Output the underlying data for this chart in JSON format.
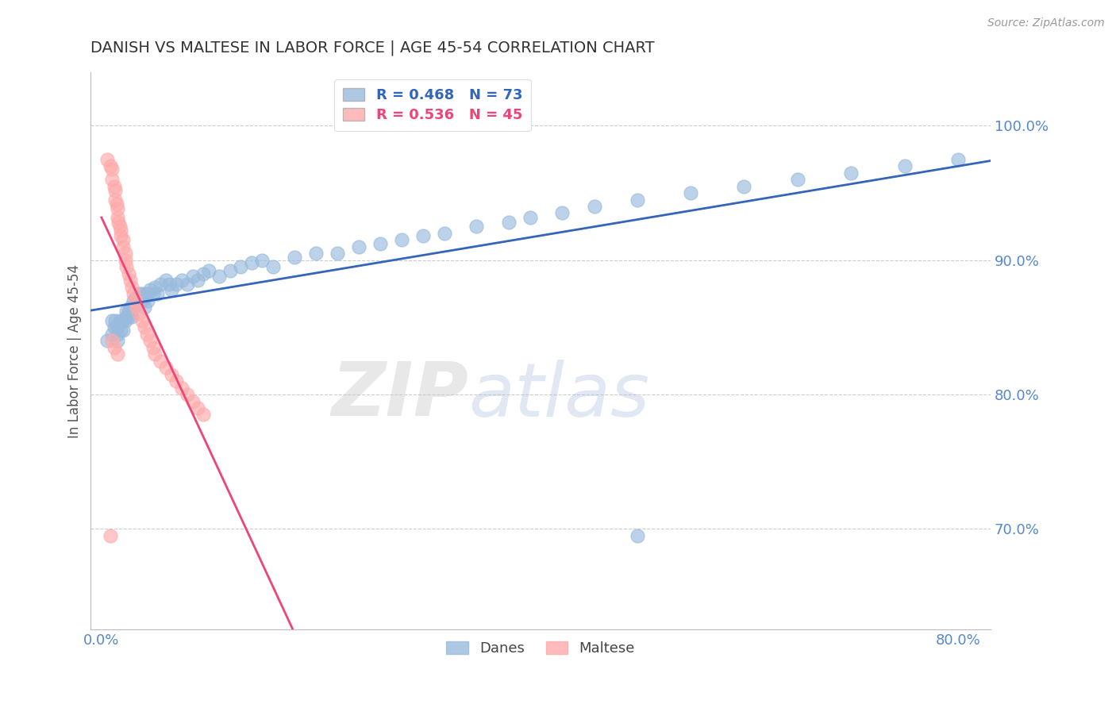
{
  "title": "DANISH VS MALTESE IN LABOR FORCE | AGE 45-54 CORRELATION CHART",
  "source_text": "Source: ZipAtlas.com",
  "ylabel": "In Labor Force | Age 45-54",
  "x_tick_labels": [
    "0.0%",
    "80.0%"
  ],
  "x_tick_positions": [
    0.0,
    0.8
  ],
  "y_tick_labels": [
    "70.0%",
    "80.0%",
    "90.0%",
    "100.0%"
  ],
  "y_tick_positions": [
    0.7,
    0.8,
    0.9,
    1.0
  ],
  "xlim": [
    -0.01,
    0.83
  ],
  "ylim": [
    0.625,
    1.04
  ],
  "danes_R": 0.468,
  "danes_N": 73,
  "maltese_R": 0.536,
  "maltese_N": 45,
  "danes_color": "#99BBDD",
  "maltese_color": "#FFAAAA",
  "danes_line_color": "#3366BB",
  "maltese_line_color": "#EE4477",
  "danes_x": [
    0.005,
    0.01,
    0.01,
    0.012,
    0.013,
    0.015,
    0.015,
    0.015,
    0.017,
    0.018,
    0.02,
    0.02,
    0.022,
    0.023,
    0.023,
    0.025,
    0.025,
    0.027,
    0.028,
    0.028,
    0.03,
    0.03,
    0.032,
    0.033,
    0.035,
    0.037,
    0.038,
    0.04,
    0.04,
    0.042,
    0.043,
    0.045,
    0.048,
    0.05,
    0.052,
    0.055,
    0.06,
    0.063,
    0.065,
    0.07,
    0.075,
    0.08,
    0.085,
    0.09,
    0.095,
    0.1,
    0.11,
    0.12,
    0.13,
    0.14,
    0.15,
    0.16,
    0.18,
    0.2,
    0.22,
    0.24,
    0.26,
    0.28,
    0.3,
    0.32,
    0.35,
    0.38,
    0.4,
    0.43,
    0.46,
    0.5,
    0.55,
    0.6,
    0.65,
    0.7,
    0.75,
    0.8,
    0.5
  ],
  "danes_y": [
    0.84,
    0.855,
    0.845,
    0.85,
    0.855,
    0.85,
    0.84,
    0.845,
    0.855,
    0.848,
    0.855,
    0.848,
    0.855,
    0.862,
    0.858,
    0.862,
    0.858,
    0.865,
    0.862,
    0.858,
    0.87,
    0.865,
    0.872,
    0.868,
    0.875,
    0.87,
    0.875,
    0.872,
    0.865,
    0.875,
    0.87,
    0.878,
    0.875,
    0.88,
    0.875,
    0.882,
    0.885,
    0.882,
    0.878,
    0.882,
    0.885,
    0.882,
    0.888,
    0.885,
    0.89,
    0.892,
    0.888,
    0.892,
    0.895,
    0.898,
    0.9,
    0.895,
    0.902,
    0.905,
    0.905,
    0.91,
    0.912,
    0.915,
    0.918,
    0.92,
    0.925,
    0.928,
    0.932,
    0.935,
    0.94,
    0.945,
    0.95,
    0.955,
    0.96,
    0.965,
    0.97,
    0.975,
    0.695
  ],
  "maltese_x": [
    0.005,
    0.008,
    0.01,
    0.01,
    0.012,
    0.013,
    0.013,
    0.014,
    0.015,
    0.015,
    0.016,
    0.017,
    0.018,
    0.018,
    0.02,
    0.02,
    0.022,
    0.022,
    0.023,
    0.025,
    0.027,
    0.028,
    0.03,
    0.032,
    0.033,
    0.035,
    0.038,
    0.04,
    0.042,
    0.045,
    0.048,
    0.05,
    0.055,
    0.06,
    0.065,
    0.07,
    0.075,
    0.08,
    0.085,
    0.09,
    0.095,
    0.01,
    0.012,
    0.015,
    0.008
  ],
  "maltese_y": [
    0.975,
    0.97,
    0.968,
    0.96,
    0.955,
    0.952,
    0.945,
    0.942,
    0.938,
    0.932,
    0.928,
    0.925,
    0.922,
    0.918,
    0.915,
    0.91,
    0.905,
    0.9,
    0.895,
    0.89,
    0.885,
    0.88,
    0.875,
    0.87,
    0.865,
    0.86,
    0.855,
    0.85,
    0.845,
    0.84,
    0.835,
    0.83,
    0.825,
    0.82,
    0.815,
    0.81,
    0.805,
    0.8,
    0.795,
    0.79,
    0.785,
    0.84,
    0.835,
    0.83,
    0.695
  ],
  "watermark_zip": "ZIP",
  "watermark_atlas": "atlas",
  "grid_color": "#CCCCCC",
  "title_color": "#333333",
  "axis_label_color": "#555555",
  "tick_label_color": "#5588CC"
}
